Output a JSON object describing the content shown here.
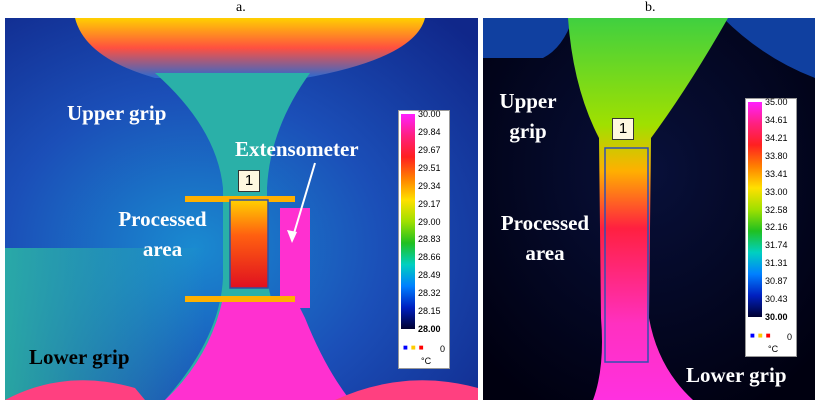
{
  "panels": [
    {
      "caption": "a.",
      "marker": "1",
      "unit": "°C",
      "legend_icon_text": "0",
      "annotations": {
        "upper": "Upper grip",
        "extensometer": "Extensometer",
        "processed": "Processed area",
        "lower": "Lower grip"
      },
      "scale": [
        "30.00",
        "29.84",
        "29.67",
        "29.51",
        "29.34",
        "29.17",
        "29.00",
        "28.83",
        "28.66",
        "28.49",
        "28.32",
        "28.15",
        "28.00"
      ]
    },
    {
      "caption": "b.",
      "marker": "1",
      "unit": "°C",
      "legend_icon_text": "0",
      "annotations": {
        "upper": "Upper grip",
        "processed": "Processed area",
        "lower": "Lower grip"
      },
      "scale": [
        "35.00",
        "34.61",
        "34.21",
        "33.80",
        "33.41",
        "33.00",
        "32.58",
        "32.16",
        "31.74",
        "31.31",
        "30.87",
        "30.43",
        "30.00"
      ]
    }
  ]
}
